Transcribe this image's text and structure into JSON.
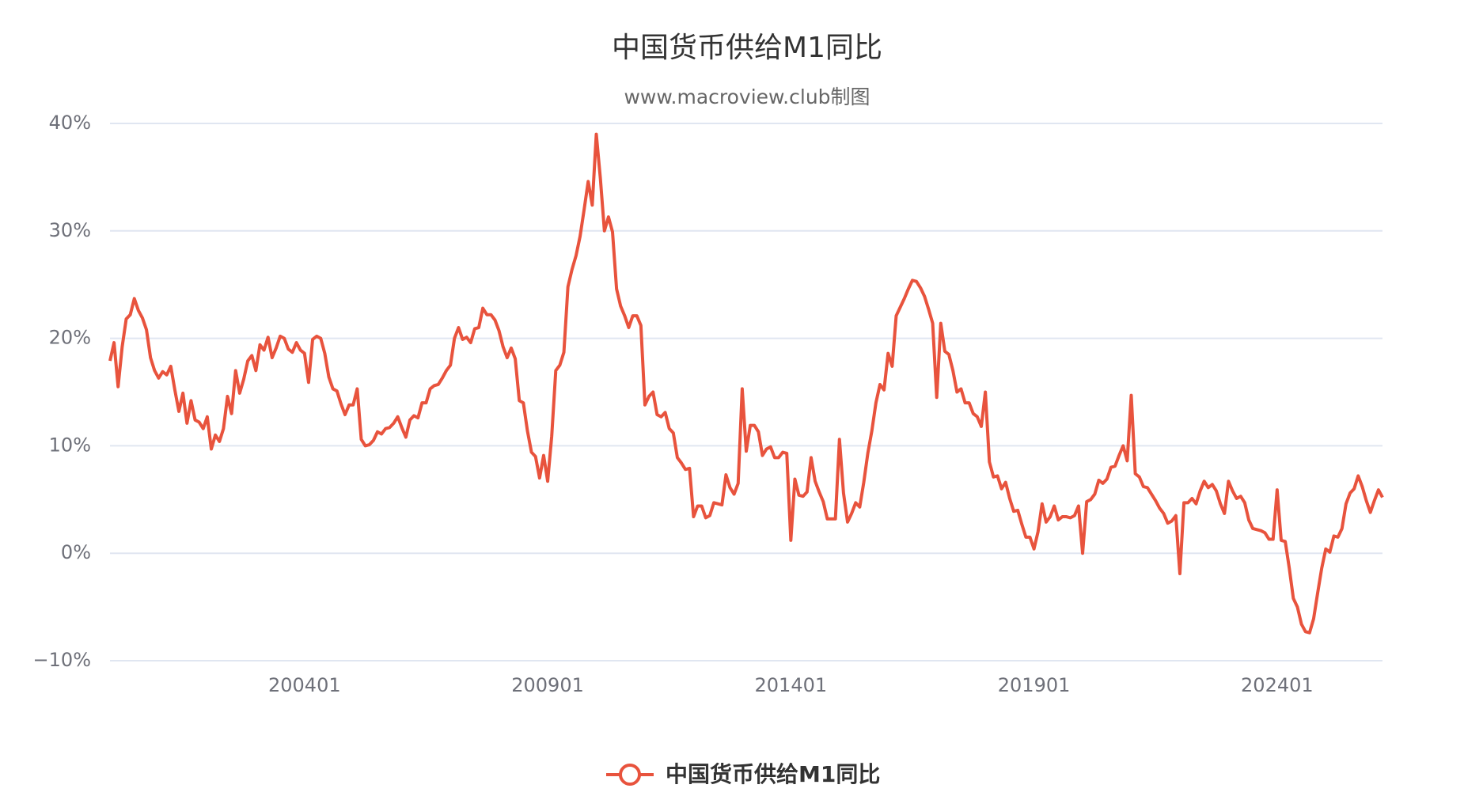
{
  "chart_data": {
    "type": "line",
    "title": "中国货币供给M1同比",
    "subtitle": "www.macroview.club制图",
    "categories": [
      null,
      null,
      null,
      null,
      null,
      null,
      null,
      null,
      null,
      null,
      null,
      null,
      null,
      null,
      null,
      null,
      null,
      null,
      null,
      null,
      null,
      null,
      null,
      null,
      null,
      null,
      null,
      null,
      null,
      null,
      null,
      null,
      null,
      null,
      null,
      null,
      null,
      null,
      null,
      null,
      null,
      null,
      null,
      null,
      null,
      null,
      null,
      null,
      "200401",
      null,
      null,
      null,
      null,
      null,
      null,
      null,
      null,
      null,
      null,
      null,
      null,
      null,
      null,
      null,
      null,
      null,
      null,
      null,
      null,
      null,
      null,
      null,
      null,
      null,
      null,
      null,
      null,
      null,
      null,
      null,
      null,
      null,
      null,
      null,
      null,
      null,
      null,
      null,
      null,
      null,
      null,
      null,
      null,
      null,
      null,
      null,
      null,
      null,
      null,
      null,
      null,
      null,
      null,
      null,
      null,
      null,
      null,
      null,
      "200901",
      null,
      null,
      null,
      null,
      null,
      null,
      null,
      null,
      null,
      null,
      null,
      null,
      null,
      null,
      null,
      null,
      null,
      null,
      null,
      null,
      null,
      null,
      null,
      null,
      null,
      null,
      null,
      null,
      null,
      null,
      null,
      null,
      null,
      null,
      null,
      null,
      null,
      null,
      null,
      null,
      null,
      null,
      null,
      null,
      null,
      null,
      null,
      null,
      null,
      null,
      null,
      null,
      null,
      null,
      null,
      null,
      null,
      null,
      null,
      "201401",
      null,
      null,
      null,
      null,
      null,
      null,
      null,
      null,
      null,
      null,
      null,
      null,
      null,
      null,
      null,
      null,
      null,
      null,
      null,
      null,
      null,
      null,
      null,
      null,
      null,
      null,
      null,
      null,
      null,
      null,
      null,
      null,
      null,
      null,
      null,
      null,
      null,
      null,
      null,
      null,
      null,
      null,
      null,
      null,
      null,
      null,
      null,
      null,
      null,
      null,
      null,
      null,
      null,
      null,
      null,
      null,
      null,
      null,
      null,
      "201901",
      null,
      null,
      null,
      null,
      null,
      null,
      null,
      null,
      null,
      null,
      null,
      null,
      null,
      null,
      null,
      null,
      null,
      null,
      null,
      null,
      null,
      null,
      null,
      null,
      null,
      null,
      null,
      null,
      null,
      null,
      null,
      null,
      null,
      null,
      null,
      null,
      null,
      null,
      null,
      null,
      null,
      null,
      null,
      null,
      null,
      null,
      null,
      null,
      null,
      null,
      null,
      null,
      null,
      null,
      null,
      null,
      null,
      null,
      null,
      "202401",
      null,
      null,
      null,
      null,
      null,
      null,
      null,
      null,
      null,
      null,
      null,
      null,
      null,
      null,
      null,
      null,
      null,
      null,
      null,
      null,
      null,
      null,
      null,
      null,
      null,
      null
    ],
    "series": [
      {
        "name": "中国货币供给M1同比",
        "color": "#e8533d",
        "values": [
          17.9,
          19.6,
          15.5,
          19.2,
          21.8,
          22.2,
          23.7,
          22.6,
          21.9,
          20.8,
          18.2,
          17.0,
          16.3,
          16.9,
          16.6,
          17.4,
          15.2,
          13.2,
          14.9,
          12.1,
          14.2,
          12.4,
          12.2,
          11.6,
          12.7,
          9.7,
          11.0,
          10.4,
          11.6,
          14.6,
          13.0,
          17.0,
          14.9,
          16.2,
          17.9,
          18.4,
          17.0,
          19.4,
          18.9,
          20.1,
          18.2,
          19.1,
          20.2,
          20.0,
          19.0,
          18.7,
          19.6,
          18.9,
          18.6,
          15.9,
          19.9,
          20.2,
          20.0,
          18.6,
          16.4,
          15.3,
          15.1,
          13.9,
          12.9,
          13.8,
          13.8,
          15.3,
          10.6,
          10.0,
          10.1,
          10.5,
          11.3,
          11.1,
          11.6,
          11.7,
          12.1,
          12.7,
          11.7,
          10.8,
          12.4,
          12.8,
          12.6,
          14.0,
          14.0,
          15.3,
          15.6,
          15.7,
          16.3,
          17.0,
          17.5,
          20.0,
          21.0,
          19.9,
          20.1,
          19.6,
          20.9,
          21.0,
          22.8,
          22.2,
          22.2,
          21.7,
          20.7,
          19.2,
          18.2,
          19.1,
          18.1,
          14.2,
          14.0,
          11.4,
          9.4,
          9.0,
          7.0,
          9.1,
          6.7,
          10.9,
          17.0,
          17.5,
          18.7,
          24.8,
          26.4,
          27.7,
          29.5,
          32.0,
          34.6,
          32.4,
          39.0,
          34.9,
          30.0,
          31.3,
          29.9,
          24.6,
          23.0,
          22.1,
          21.0,
          22.1,
          22.1,
          21.2,
          13.8,
          14.6,
          15.0,
          12.9,
          12.7,
          13.1,
          11.6,
          11.2,
          8.9,
          8.4,
          7.8,
          7.9,
          3.4,
          4.4,
          4.4,
          3.3,
          3.5,
          4.7,
          4.6,
          4.5,
          7.3,
          6.1,
          5.5,
          6.5,
          15.3,
          9.5,
          11.9,
          11.9,
          11.3,
          9.1,
          9.7,
          9.9,
          8.9,
          8.9,
          9.4,
          9.3,
          1.2,
          6.9,
          5.4,
          5.3,
          5.7,
          8.9,
          6.7,
          5.7,
          4.8,
          3.2,
          3.2,
          3.2,
          10.6,
          5.6,
          2.9,
          3.7,
          4.7,
          4.3,
          6.6,
          9.3,
          11.4,
          14.0,
          15.7,
          15.2,
          18.6,
          17.4,
          22.1,
          22.9,
          23.7,
          24.6,
          25.4,
          25.3,
          24.7,
          23.9,
          22.7,
          21.4,
          14.5,
          21.4,
          18.8,
          18.5,
          17.0,
          15.0,
          15.3,
          14.0,
          14.0,
          13.0,
          12.7,
          11.8,
          15.0,
          8.5,
          7.1,
          7.2,
          6.0,
          6.6,
          5.1,
          3.9,
          4.0,
          2.7,
          1.5,
          1.5,
          0.4,
          2.0,
          4.6,
          2.9,
          3.4,
          4.4,
          3.1,
          3.4,
          3.4,
          3.3,
          3.5,
          4.4,
          0.0,
          4.8,
          5.0,
          5.5,
          6.8,
          6.5,
          6.9,
          8.0,
          8.1,
          9.1,
          10.0,
          8.6,
          14.7,
          7.4,
          7.1,
          6.2,
          6.1,
          5.5,
          4.9,
          4.2,
          3.7,
          2.8,
          3.0,
          3.5,
          -1.9,
          4.7,
          4.7,
          5.1,
          4.6,
          5.8,
          6.7,
          6.1,
          6.4,
          5.8,
          4.6,
          3.7,
          6.7,
          5.8,
          5.1,
          5.3,
          4.7,
          3.1,
          2.3,
          2.2,
          2.1,
          1.9,
          1.3,
          1.3,
          5.9,
          1.2,
          1.1,
          -1.4,
          -4.2,
          -5.0,
          -6.6,
          -7.3,
          -7.4,
          -6.1,
          -3.7,
          -1.4,
          0.4,
          0.1,
          1.6,
          1.5,
          2.3,
          4.6,
          5.6,
          6.0,
          7.2,
          6.2,
          4.9,
          3.8,
          4.9,
          5.9,
          5.2
        ]
      }
    ],
    "ylim": [
      -10,
      40
    ],
    "yticks": [
      {
        "value": -10,
        "label": "−10%"
      },
      {
        "value": 0,
        "label": "0%"
      },
      {
        "value": 10,
        "label": "10%"
      },
      {
        "value": 20,
        "label": "20%"
      },
      {
        "value": 30,
        "label": "30%"
      },
      {
        "value": 40,
        "label": "40%"
      }
    ],
    "grid": true,
    "legend": "bottom"
  }
}
